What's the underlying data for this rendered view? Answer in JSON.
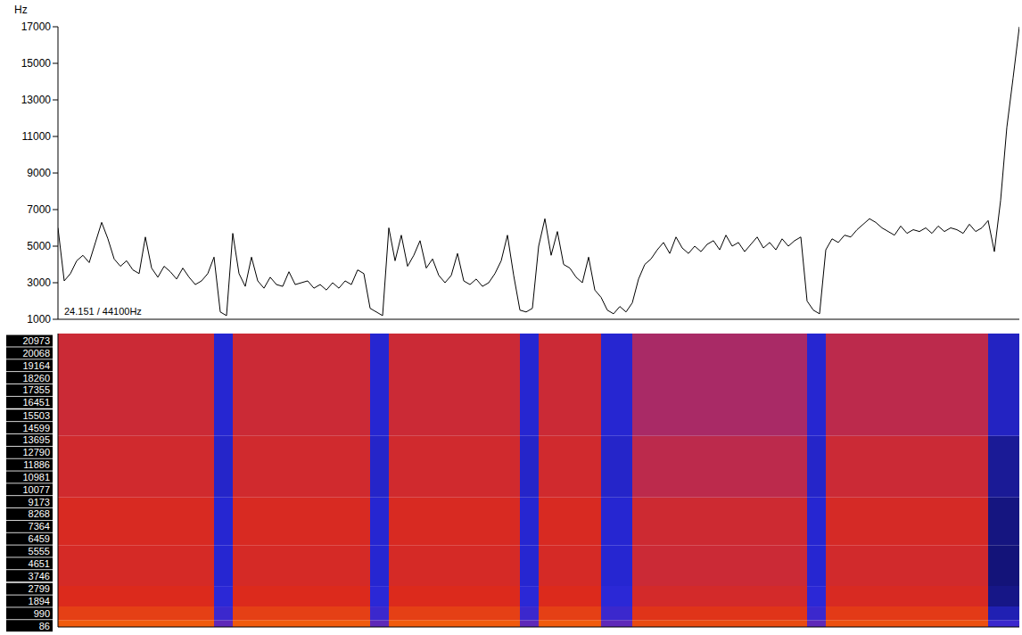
{
  "chart_data": [
    {
      "type": "line",
      "y_label": "Hz",
      "annotations": [
        "24.151 / 44100Hz"
      ],
      "color": "#000000",
      "grid": false,
      "tick_labels": "y",
      "xlim": [
        0,
        154
      ],
      "xticks": [],
      "ylim": [
        1000,
        17000
      ],
      "yticks": [
        1000,
        3000,
        5000,
        7000,
        9000,
        11000,
        13000,
        15000,
        17000
      ],
      "x": [
        0,
        1,
        2,
        3,
        4,
        5,
        6,
        7,
        8,
        9,
        10,
        11,
        12,
        13,
        14,
        15,
        16,
        17,
        18,
        19,
        20,
        21,
        22,
        23,
        24,
        25,
        26,
        27,
        28,
        29,
        30,
        31,
        32,
        33,
        34,
        35,
        36,
        37,
        38,
        39,
        40,
        41,
        42,
        43,
        44,
        45,
        46,
        47,
        48,
        49,
        50,
        51,
        52,
        53,
        54,
        55,
        56,
        57,
        58,
        59,
        60,
        61,
        62,
        63,
        64,
        65,
        66,
        67,
        68,
        69,
        70,
        71,
        72,
        73,
        74,
        75,
        76,
        77,
        78,
        79,
        80,
        81,
        82,
        83,
        84,
        85,
        86,
        87,
        88,
        89,
        90,
        91,
        92,
        93,
        94,
        95,
        96,
        97,
        98,
        99,
        100,
        101,
        102,
        103,
        104,
        105,
        106,
        107,
        108,
        109,
        110,
        111,
        112,
        113,
        114,
        115,
        116,
        117,
        118,
        119,
        120,
        121,
        122,
        123,
        124,
        125,
        126,
        127,
        128,
        129,
        130,
        131,
        132,
        133,
        134,
        135,
        136,
        137,
        138,
        139,
        140,
        141,
        142,
        143,
        144,
        145,
        146,
        147,
        148,
        149,
        150,
        151,
        152,
        153,
        154
      ],
      "values": [
        6000,
        3100,
        3500,
        4200,
        4500,
        4100,
        5200,
        6300,
        5400,
        4300,
        3900,
        4200,
        3700,
        3500,
        5500,
        3800,
        3300,
        3900,
        3600,
        3200,
        3800,
        3300,
        2900,
        3100,
        3500,
        4400,
        1400,
        1200,
        5700,
        3500,
        2800,
        4400,
        3100,
        2700,
        3300,
        2900,
        2800,
        3600,
        2900,
        3000,
        3100,
        2700,
        2900,
        2600,
        3000,
        2700,
        3100,
        2900,
        3700,
        3500,
        1600,
        1400,
        1200,
        6000,
        4200,
        5600,
        3900,
        4500,
        5300,
        3800,
        4300,
        3400,
        3000,
        3400,
        4600,
        3100,
        2900,
        3200,
        2800,
        3000,
        3500,
        4200,
        5600,
        3400,
        1500,
        1400,
        1600,
        5000,
        6500,
        4500,
        5800,
        4000,
        3800,
        3300,
        3000,
        4400,
        2600,
        2200,
        1500,
        1300,
        1700,
        1400,
        1900,
        3200,
        4000,
        4300,
        4800,
        5200,
        4600,
        5500,
        4900,
        4600,
        5000,
        4700,
        5100,
        5300,
        4800,
        5600,
        5000,
        5200,
        4700,
        5100,
        5500,
        4900,
        5200,
        4800,
        5400,
        5000,
        5300,
        5500,
        2000,
        1500,
        1300,
        4800,
        5400,
        5200,
        5600,
        5500,
        5900,
        6200,
        6500,
        6300,
        6000,
        5800,
        5600,
        6100,
        5700,
        5900,
        5800,
        6000,
        5700,
        6100,
        5800,
        6000,
        5900,
        5700,
        6200,
        5800,
        6000,
        6400,
        4700,
        7500,
        11500,
        14200,
        17000
      ]
    },
    {
      "type": "heatmap",
      "tick_labels": "y",
      "xlim": [
        0,
        154
      ],
      "xticks": [],
      "ylim": [
        0,
        21500
      ],
      "yticks": [
        20973,
        20068,
        19164,
        18260,
        17355,
        16451,
        15503,
        14599,
        13695,
        12790,
        11886,
        10981,
        10077,
        9173,
        8268,
        7364,
        6459,
        5555,
        4651,
        3746,
        2799,
        1894,
        990,
        86
      ],
      "x_edges": [
        0,
        25,
        28,
        50,
        53,
        74,
        77,
        87,
        92,
        120,
        123,
        149,
        154
      ],
      "y_edges": [
        0,
        500,
        1500,
        3000,
        6000,
        9500,
        14000,
        21500
      ],
      "crange": [
        0,
        1
      ],
      "cells": [
        [
          1.0,
          0.92,
          0.85,
          0.8,
          0.82,
          0.76,
          0.72
        ],
        [
          0.35,
          0.22,
          0.16,
          0.14,
          0.14,
          0.13,
          0.14
        ],
        [
          1.0,
          0.92,
          0.85,
          0.8,
          0.82,
          0.76,
          0.72
        ],
        [
          0.35,
          0.22,
          0.16,
          0.14,
          0.14,
          0.13,
          0.14
        ],
        [
          1.0,
          0.92,
          0.85,
          0.8,
          0.82,
          0.76,
          0.72
        ],
        [
          0.35,
          0.22,
          0.16,
          0.14,
          0.14,
          0.13,
          0.14
        ],
        [
          1.0,
          0.92,
          0.85,
          0.8,
          0.82,
          0.76,
          0.72
        ],
        [
          0.35,
          0.22,
          0.16,
          0.14,
          0.14,
          0.13,
          0.14
        ],
        [
          0.95,
          0.88,
          0.78,
          0.72,
          0.74,
          0.66,
          0.6
        ],
        [
          0.35,
          0.22,
          0.16,
          0.14,
          0.14,
          0.13,
          0.14
        ],
        [
          0.97,
          0.9,
          0.82,
          0.77,
          0.8,
          0.72,
          0.66
        ],
        [
          0.22,
          0.1,
          0.04,
          0.02,
          0.03,
          0.06,
          0.12
        ]
      ]
    }
  ]
}
